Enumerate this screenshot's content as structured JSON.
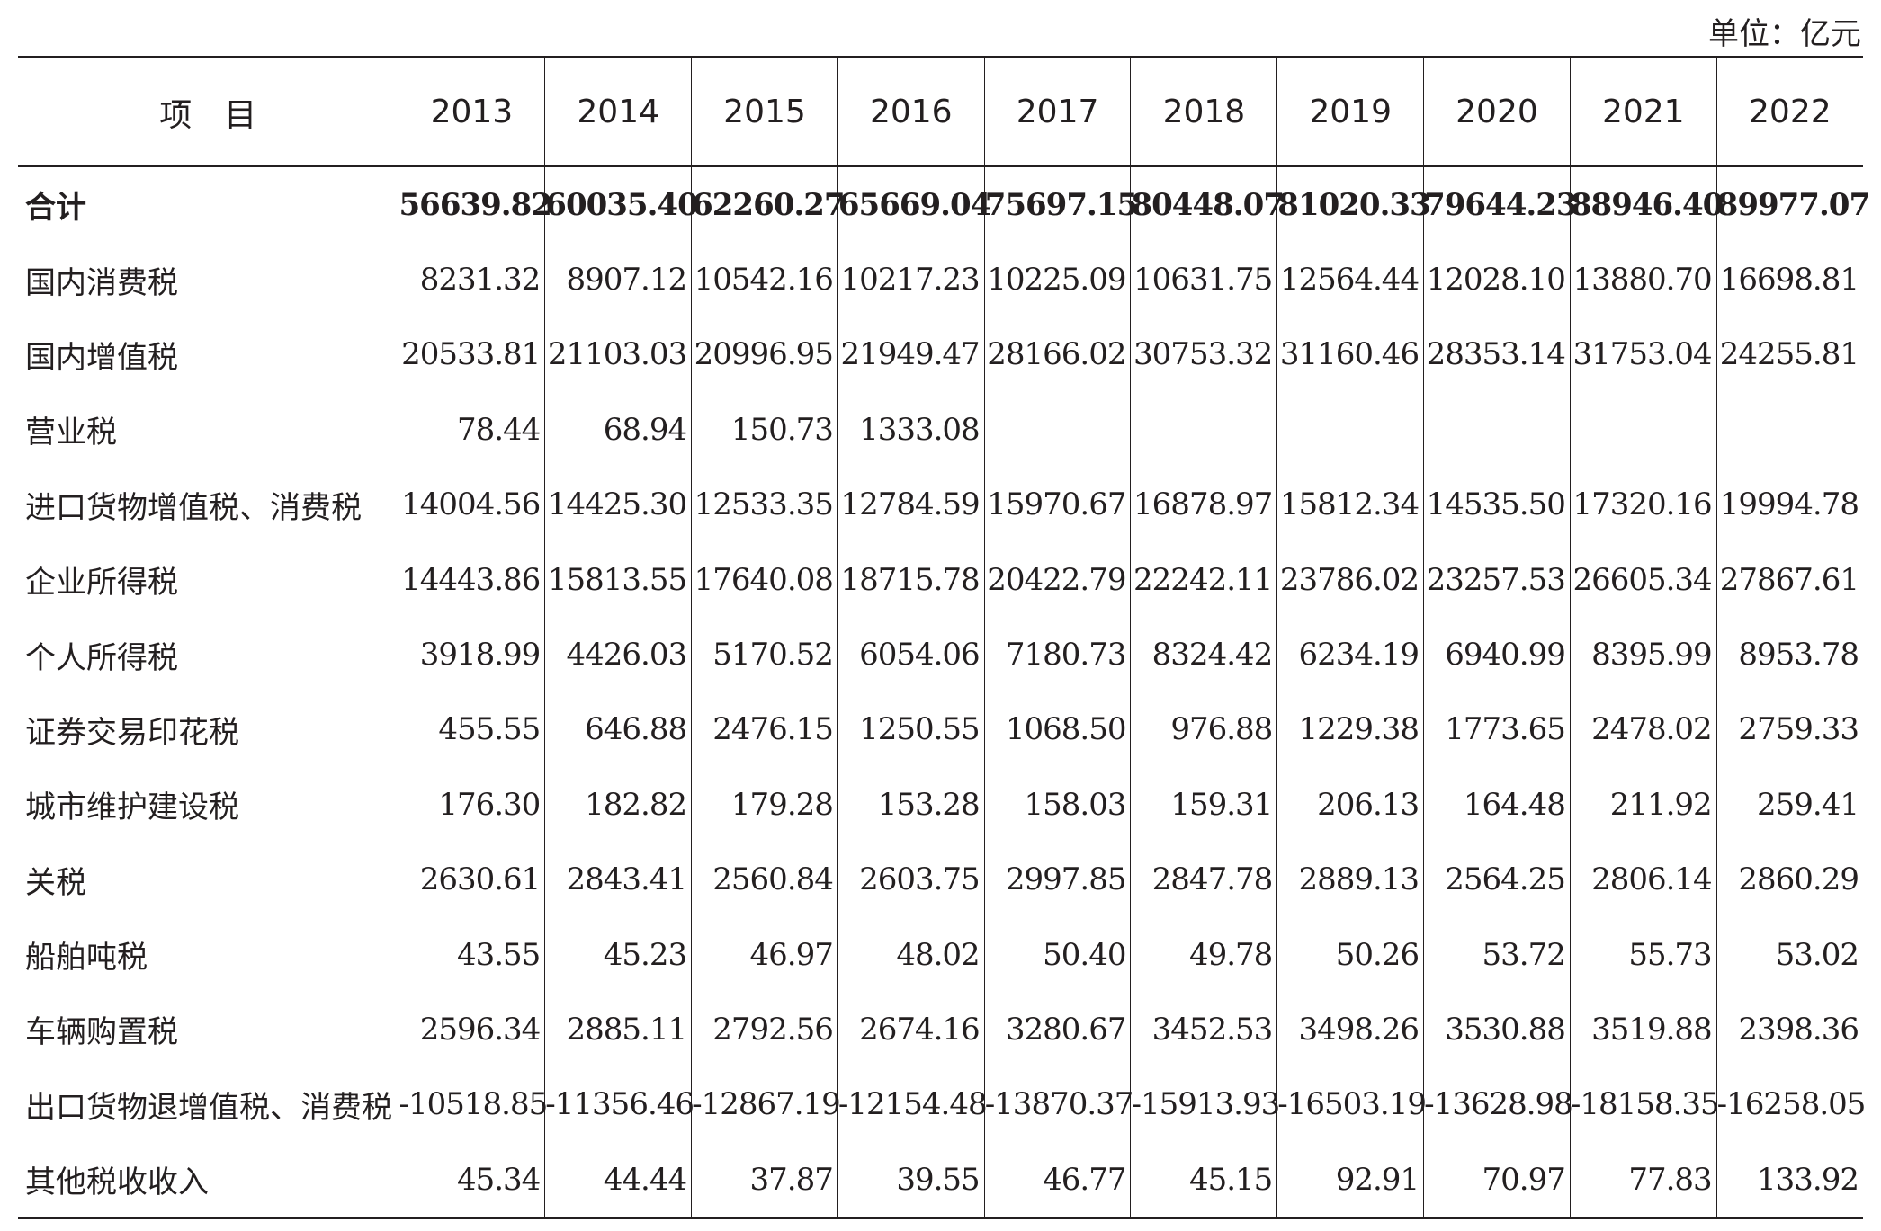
{
  "unit": "单位：亿元",
  "table": {
    "header": [
      "项　目",
      "2013",
      "2014",
      "2015",
      "2016",
      "2017",
      "2018",
      "2019",
      "2020",
      "2021",
      "2022"
    ],
    "rows": [
      {
        "label": "合计",
        "values": [
          "56639.82",
          "60035.40",
          "62260.27",
          "65669.04",
          "75697.15",
          "80448.07",
          "81020.33",
          "79644.23",
          "88946.40",
          "89977.07"
        ]
      },
      {
        "label": "国内消费税",
        "values": [
          "8231.32",
          "8907.12",
          "10542.16",
          "10217.23",
          "10225.09",
          "10631.75",
          "12564.44",
          "12028.10",
          "13880.70",
          "16698.81"
        ]
      },
      {
        "label": "国内增值税",
        "values": [
          "20533.81",
          "21103.03",
          "20996.95",
          "21949.47",
          "28166.02",
          "30753.32",
          "31160.46",
          "28353.14",
          "31753.04",
          "24255.81"
        ]
      },
      {
        "label": "营业税",
        "values": [
          "78.44",
          "68.94",
          "150.73",
          "1333.08",
          null,
          null,
          null,
          null,
          null,
          null
        ]
      },
      {
        "label": "进口货物增值税、消费税",
        "values": [
          "14004.56",
          "14425.30",
          "12533.35",
          "12784.59",
          "15970.67",
          "16878.97",
          "15812.34",
          "14535.50",
          "17320.16",
          "19994.78"
        ]
      },
      {
        "label": "企业所得税",
        "values": [
          "14443.86",
          "15813.55",
          "17640.08",
          "18715.78",
          "20422.79",
          "22242.11",
          "23786.02",
          "23257.53",
          "26605.34",
          "27867.61"
        ]
      },
      {
        "label": "个人所得税",
        "values": [
          "3918.99",
          "4426.03",
          "5170.52",
          "6054.06",
          "7180.73",
          "8324.42",
          "6234.19",
          "6940.99",
          "8395.99",
          "8953.78"
        ]
      },
      {
        "label": "证券交易印花税",
        "values": [
          "455.55",
          "646.88",
          "2476.15",
          "1250.55",
          "1068.50",
          "976.88",
          "1229.38",
          "1773.65",
          "2478.02",
          "2759.33"
        ]
      },
      {
        "label": "城市维护建设税",
        "values": [
          "176.30",
          "182.82",
          "179.28",
          "153.28",
          "158.03",
          "159.31",
          "206.13",
          "164.48",
          "211.92",
          "259.41"
        ]
      },
      {
        "label": "关税",
        "values": [
          "2630.61",
          "2843.41",
          "2560.84",
          "2603.75",
          "2997.85",
          "2847.78",
          "2889.13",
          "2564.25",
          "2806.14",
          "2860.29"
        ]
      },
      {
        "label": "船舶吨税",
        "values": [
          "43.55",
          "45.23",
          "46.97",
          "48.02",
          "50.40",
          "49.78",
          "50.26",
          "53.72",
          "55.73",
          "53.02"
        ]
      },
      {
        "label": "车辆购置税",
        "values": [
          "2596.34",
          "2885.11",
          "2792.56",
          "2674.16",
          "3280.67",
          "3452.53",
          "3498.26",
          "3530.88",
          "3519.88",
          "2398.36"
        ]
      },
      {
        "label": "出口货物退增值税、消费税",
        "values": [
          "-10518.85",
          "-11356.46",
          "-12867.19",
          "-12154.48",
          "-13870.37",
          "-15913.93",
          "-16503.19",
          "-13628.98",
          "-18158.35",
          "-16258.05"
        ]
      },
      {
        "label": "其他税收收入",
        "values": [
          "45.34",
          "44.44",
          "37.87",
          "39.55",
          "46.77",
          "45.15",
          "92.91",
          "70.97",
          "77.83",
          "133.92"
        ]
      }
    ]
  }
}
